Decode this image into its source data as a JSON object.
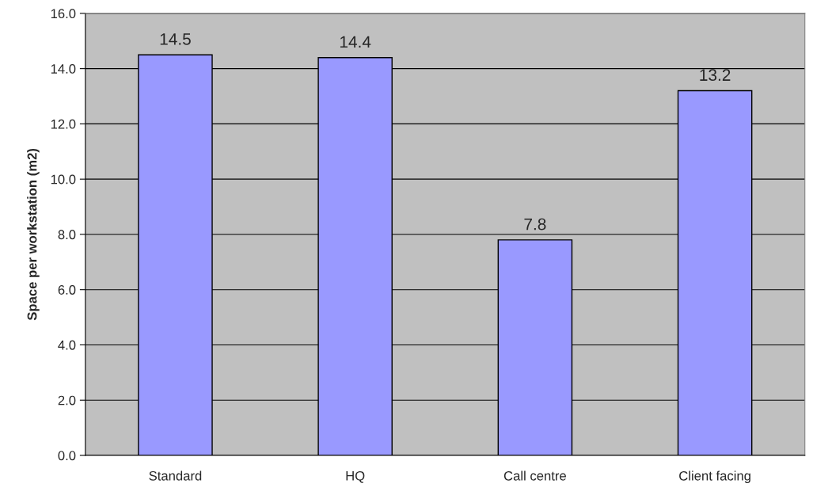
{
  "chart_data": {
    "type": "bar",
    "ylabel": "Space per workstation (m2)",
    "categories": [
      "Standard",
      "HQ",
      "Call centre",
      "Client facing"
    ],
    "values": [
      14.5,
      14.4,
      7.8,
      13.2
    ],
    "color": "#9999ff",
    "ylim": [
      0,
      16
    ],
    "yticks": [
      {
        "value": 0,
        "label": "0.0"
      },
      {
        "value": 2,
        "label": "2.0"
      },
      {
        "value": 4,
        "label": "4.0"
      },
      {
        "value": 6,
        "label": "6.0"
      },
      {
        "value": 8,
        "label": "8.0"
      },
      {
        "value": 10,
        "label": "10.0"
      },
      {
        "value": 12,
        "label": "12.0"
      },
      {
        "value": 14,
        "label": "14.0"
      },
      {
        "value": 16,
        "label": "16.0"
      }
    ],
    "grid": "y",
    "data_labels": true
  }
}
